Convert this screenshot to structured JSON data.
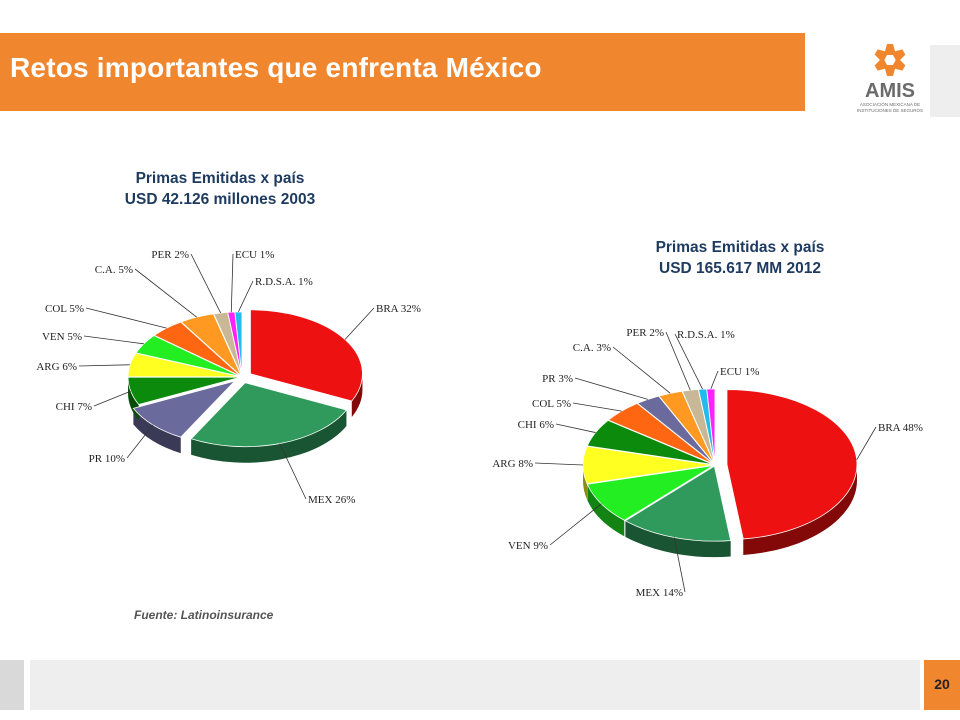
{
  "header": {
    "title": "Retos importantes que enfrenta México"
  },
  "logo": {
    "text": "AMIS",
    "subtext_line1": "ASOCIACIÓN MEXICANA DE",
    "subtext_line2": "INSTITUCIONES DE SEGUROS"
  },
  "source": "Fuente: Latinoinsurance",
  "footer": {
    "page_number": "20"
  },
  "colors": {
    "accent": "#f0862e",
    "title_text": "#1e3a5f"
  },
  "chart_data": [
    {
      "type": "pie",
      "title": "Primas Emitidas x  país",
      "subtitle": "USD 42.126 millones 2003",
      "slices": [
        {
          "label": "BRA 32%",
          "value": 32,
          "color": "#ee1111"
        },
        {
          "label": "MEX 26%",
          "value": 26,
          "color": "#2f9a5c"
        },
        {
          "label": "PR 10%",
          "value": 10,
          "color": "#6a6a9c"
        },
        {
          "label": "CHI 7%",
          "value": 7,
          "color": "#0b8a0b"
        },
        {
          "label": "ARG 6%",
          "value": 6,
          "color": "#ffff22"
        },
        {
          "label": "VEN 5%",
          "value": 5,
          "color": "#22ee22"
        },
        {
          "label": "COL 5%",
          "value": 5,
          "color": "#ff6611"
        },
        {
          "label": "C.A.  5%",
          "value": 5,
          "color": "#ff9922"
        },
        {
          "label": "PER 2%",
          "value": 2,
          "color": "#c8b896"
        },
        {
          "label": "ECU 1%",
          "value": 1,
          "color": "#ff22ff"
        },
        {
          "label": "R.D.S.A.  1%",
          "value": 1,
          "color": "#22bbee"
        }
      ]
    },
    {
      "type": "pie",
      "title": "Primas Emitidas x país",
      "subtitle": "USD 165.617 MM 2012",
      "slices": [
        {
          "label": "BRA 48%",
          "value": 48,
          "color": "#ee1111"
        },
        {
          "label": "MEX 14%",
          "value": 14,
          "color": "#2f9a5c"
        },
        {
          "label": "VEN 9%",
          "value": 9,
          "color": "#22ee22"
        },
        {
          "label": "ARG 8%",
          "value": 8,
          "color": "#ffff22"
        },
        {
          "label": "CHI 6%",
          "value": 6,
          "color": "#0b8a0b"
        },
        {
          "label": "COL 5%",
          "value": 5,
          "color": "#ff6611"
        },
        {
          "label": "PR 3%",
          "value": 3,
          "color": "#6a6a9c"
        },
        {
          "label": "C.A.  3%",
          "value": 3,
          "color": "#ff9922"
        },
        {
          "label": "PER 2%",
          "value": 2,
          "color": "#c8b896"
        },
        {
          "label": "R.D.S.A.  1%",
          "value": 1,
          "color": "#22bbee"
        },
        {
          "label": "ECU 1%",
          "value": 1,
          "color": "#ff22ff"
        }
      ]
    }
  ]
}
